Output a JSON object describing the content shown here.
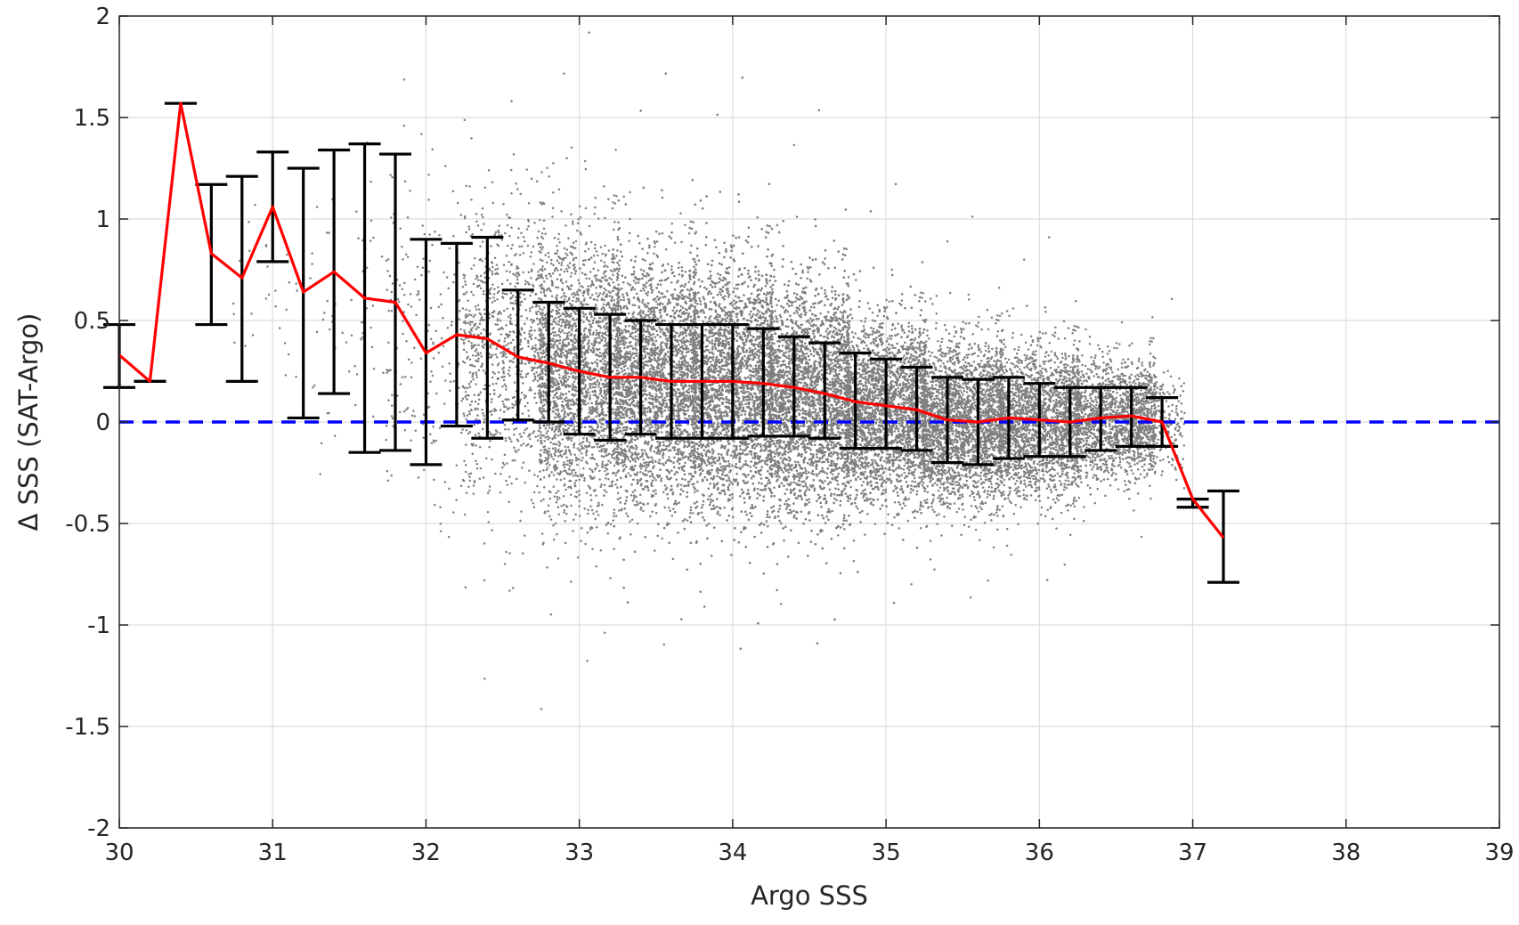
{
  "chart_data": {
    "type": "scatter",
    "title": "",
    "xlabel": "Argo SSS",
    "ylabel": "Δ SSS (SAT-Argo)",
    "xlim": [
      30,
      39
    ],
    "ylim": [
      -2,
      2
    ],
    "xticks": [
      30,
      31,
      32,
      33,
      34,
      35,
      36,
      37,
      38,
      39
    ],
    "xtick_labels": [
      "30",
      "31",
      "32",
      "33",
      "34",
      "35",
      "36",
      "37",
      "38",
      "39"
    ],
    "yticks": [
      -2,
      -1.5,
      -1,
      -0.5,
      0,
      0.5,
      1,
      1.5,
      2
    ],
    "ytick_labels": [
      "-2",
      "-1.5",
      "-1",
      "-0.5",
      "0",
      "0.5",
      "1",
      "1.5",
      "2"
    ],
    "grid": true,
    "colors": {
      "scatter": "#7f7f7f",
      "mean_line": "#ff0000",
      "error_bars": "#000000",
      "zero_line": "#0000ff",
      "grid": "#dedede",
      "axes": "#262626"
    },
    "scatter_cloud": {
      "description_points": "dense cloud of individual matchups, approx. centered per bin on the mean with spread",
      "bins": [
        {
          "x": 31.0,
          "center": 0.7,
          "spread": 0.3,
          "count": 30
        },
        {
          "x": 31.5,
          "center": 0.55,
          "spread": 0.35,
          "count": 60
        },
        {
          "x": 32.0,
          "center": 0.4,
          "spread": 0.4,
          "count": 200
        },
        {
          "x": 32.5,
          "center": 0.35,
          "spread": 0.35,
          "count": 900
        },
        {
          "x": 33.0,
          "center": 0.25,
          "spread": 0.33,
          "count": 2500
        },
        {
          "x": 33.5,
          "center": 0.2,
          "spread": 0.3,
          "count": 4200
        },
        {
          "x": 34.0,
          "center": 0.18,
          "spread": 0.3,
          "count": 5200
        },
        {
          "x": 34.5,
          "center": 0.12,
          "spread": 0.28,
          "count": 5000
        },
        {
          "x": 35.0,
          "center": 0.06,
          "spread": 0.22,
          "count": 3800
        },
        {
          "x": 35.5,
          "center": 0.0,
          "spread": 0.2,
          "count": 2800
        },
        {
          "x": 36.0,
          "center": 0.0,
          "spread": 0.18,
          "count": 2300
        },
        {
          "x": 36.5,
          "center": 0.02,
          "spread": 0.15,
          "count": 1500
        },
        {
          "x": 36.8,
          "center": 0.0,
          "spread": 0.12,
          "count": 400
        }
      ]
    },
    "mean_series": {
      "x": [
        30.0,
        30.2,
        30.4,
        30.6,
        30.8,
        31.0,
        31.2,
        31.4,
        31.6,
        31.8,
        32.0,
        32.2,
        32.4,
        32.6,
        32.8,
        33.0,
        33.2,
        33.4,
        33.6,
        33.8,
        34.0,
        34.2,
        34.4,
        34.6,
        34.8,
        35.0,
        35.2,
        35.4,
        35.6,
        35.8,
        36.0,
        36.2,
        36.4,
        36.6,
        36.8,
        37.0,
        37.2
      ],
      "y": [
        0.33,
        0.2,
        1.57,
        0.83,
        0.71,
        1.06,
        0.64,
        0.74,
        0.61,
        0.59,
        0.34,
        0.43,
        0.41,
        0.32,
        0.29,
        0.25,
        0.22,
        0.22,
        0.2,
        0.2,
        0.2,
        0.19,
        0.17,
        0.14,
        0.1,
        0.08,
        0.06,
        0.01,
        0.0,
        0.02,
        0.01,
        0.0,
        0.02,
        0.03,
        0.0,
        -0.38,
        -0.57
      ]
    },
    "error_bars": {
      "x": [
        30.0,
        30.2,
        30.4,
        30.6,
        30.8,
        31.0,
        31.2,
        31.4,
        31.6,
        31.8,
        32.0,
        32.2,
        32.4,
        32.6,
        32.8,
        33.0,
        33.2,
        33.4,
        33.6,
        33.8,
        34.0,
        34.2,
        34.4,
        34.6,
        34.8,
        35.0,
        35.2,
        35.4,
        35.6,
        35.8,
        36.0,
        36.2,
        36.4,
        36.6,
        36.8,
        37.0,
        37.2
      ],
      "lower": [
        0.17,
        0.2,
        1.57,
        0.48,
        0.2,
        0.79,
        0.02,
        0.14,
        -0.15,
        -0.14,
        -0.21,
        -0.02,
        -0.08,
        0.01,
        0.0,
        -0.06,
        -0.09,
        -0.06,
        -0.08,
        -0.08,
        -0.08,
        -0.07,
        -0.07,
        -0.08,
        -0.13,
        -0.13,
        -0.14,
        -0.2,
        -0.21,
        -0.18,
        -0.17,
        -0.17,
        -0.14,
        -0.12,
        -0.12,
        -0.42,
        -0.79
      ],
      "upper": [
        0.48,
        0.2,
        1.57,
        1.17,
        1.21,
        1.33,
        1.25,
        1.34,
        1.37,
        1.32,
        0.9,
        0.88,
        0.91,
        0.65,
        0.59,
        0.56,
        0.53,
        0.5,
        0.48,
        0.48,
        0.48,
        0.46,
        0.42,
        0.39,
        0.34,
        0.31,
        0.27,
        0.22,
        0.21,
        0.22,
        0.19,
        0.17,
        0.17,
        0.17,
        0.12,
        -0.38,
        -0.34
      ]
    },
    "reference_line": {
      "y": 0,
      "style": "dashed"
    }
  }
}
